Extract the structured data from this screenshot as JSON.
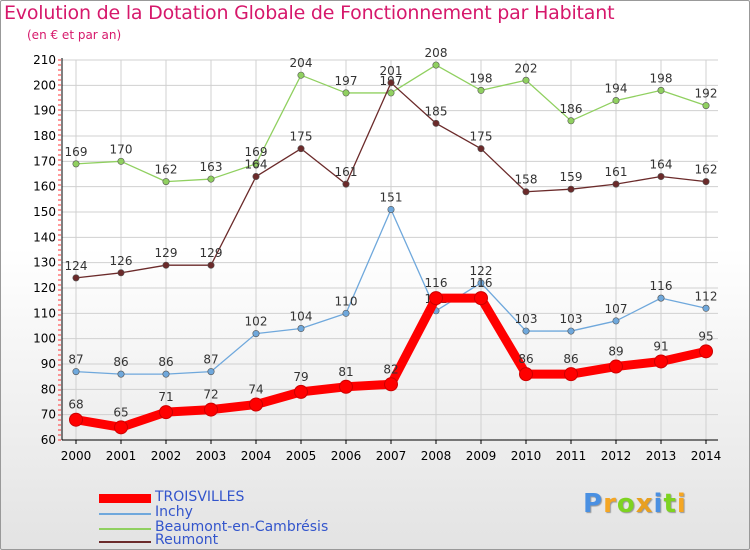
{
  "title": "Evolution de la Dotation Globale de Fonctionnement par Habitant",
  "subtitle": "(en € et par an)",
  "brand": {
    "letters": [
      "P",
      "r",
      "o",
      "x",
      "i",
      "t",
      "i"
    ],
    "colors": [
      "#4a90e2",
      "#f5a623",
      "#7ed321",
      "#e8a020",
      "#4a90e2",
      "#7ed321",
      "#f5a623"
    ]
  },
  "chart_data": {
    "type": "line",
    "title": "Evolution de la Dotation Globale de Fonctionnement par Habitant",
    "subtitle": "(en € et par an)",
    "xlabel": "",
    "ylabel": "",
    "ylim": [
      60,
      210
    ],
    "yticks": [
      60,
      70,
      80,
      90,
      100,
      110,
      120,
      130,
      140,
      150,
      160,
      170,
      180,
      190,
      200,
      210
    ],
    "grid": true,
    "legend_position": "bottom-left",
    "categories": [
      "2000",
      "2001",
      "2002",
      "2003",
      "2004",
      "2005",
      "2006",
      "2007",
      "2008",
      "2009",
      "2010",
      "2011",
      "2012",
      "2013",
      "2014"
    ],
    "series": [
      {
        "name": "TROISVILLES",
        "color": "#ff0000",
        "highlight": true,
        "values": [
          68,
          65,
          71,
          72,
          74,
          79,
          81,
          82,
          116,
          116,
          86,
          86,
          89,
          91,
          95
        ]
      },
      {
        "name": "Inchy",
        "color": "#6fa8dc",
        "highlight": false,
        "values": [
          87,
          86,
          86,
          87,
          102,
          104,
          110,
          151,
          111,
          122,
          103,
          103,
          107,
          116,
          112
        ]
      },
      {
        "name": "Beaumont-en-Cambrésis",
        "color": "#90d060",
        "highlight": false,
        "values": [
          169,
          170,
          162,
          163,
          169,
          204,
          197,
          197,
          208,
          198,
          202,
          186,
          194,
          198,
          192
        ]
      },
      {
        "name": "Reumont",
        "color": "#6b2a2a",
        "highlight": false,
        "values": [
          124,
          126,
          129,
          129,
          164,
          175,
          161,
          201,
          185,
          175,
          158,
          159,
          161,
          164,
          162
        ]
      }
    ]
  }
}
